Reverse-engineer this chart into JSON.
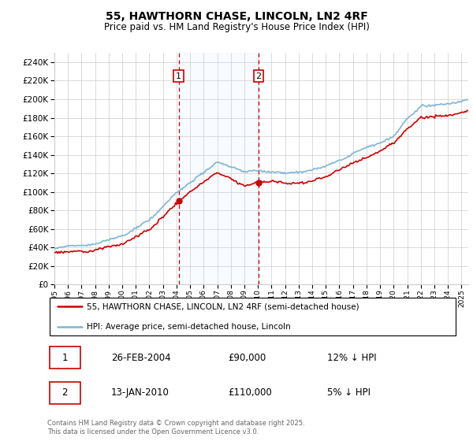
{
  "title": "55, HAWTHORN CHASE, LINCOLN, LN2 4RF",
  "subtitle": "Price paid vs. HM Land Registry's House Price Index (HPI)",
  "ylim": [
    0,
    250000
  ],
  "yticks": [
    0,
    20000,
    40000,
    60000,
    80000,
    100000,
    120000,
    140000,
    160000,
    180000,
    200000,
    220000,
    240000
  ],
  "xlim_start": 1995.0,
  "xlim_end": 2025.5,
  "purchase1_date": 2004.15,
  "purchase1_price": 90000,
  "purchase2_date": 2010.04,
  "purchase2_price": 110000,
  "hpi_color": "#7fb5d5",
  "price_color": "#cc0000",
  "shade_color": "#ddeeff",
  "annotation_box_color": "#cc0000",
  "legend_label_price": "55, HAWTHORN CHASE, LINCOLN, LN2 4RF (semi-detached house)",
  "legend_label_hpi": "HPI: Average price, semi-detached house, Lincoln",
  "table_row1": [
    "1",
    "26-FEB-2004",
    "£90,000",
    "12% ↓ HPI"
  ],
  "table_row2": [
    "2",
    "13-JAN-2010",
    "£110,000",
    "5% ↓ HPI"
  ],
  "footnote": "Contains HM Land Registry data © Crown copyright and database right 2025.\nThis data is licensed under the Open Government Licence v3.0.",
  "background_color": "#ffffff",
  "grid_color": "#cccccc"
}
